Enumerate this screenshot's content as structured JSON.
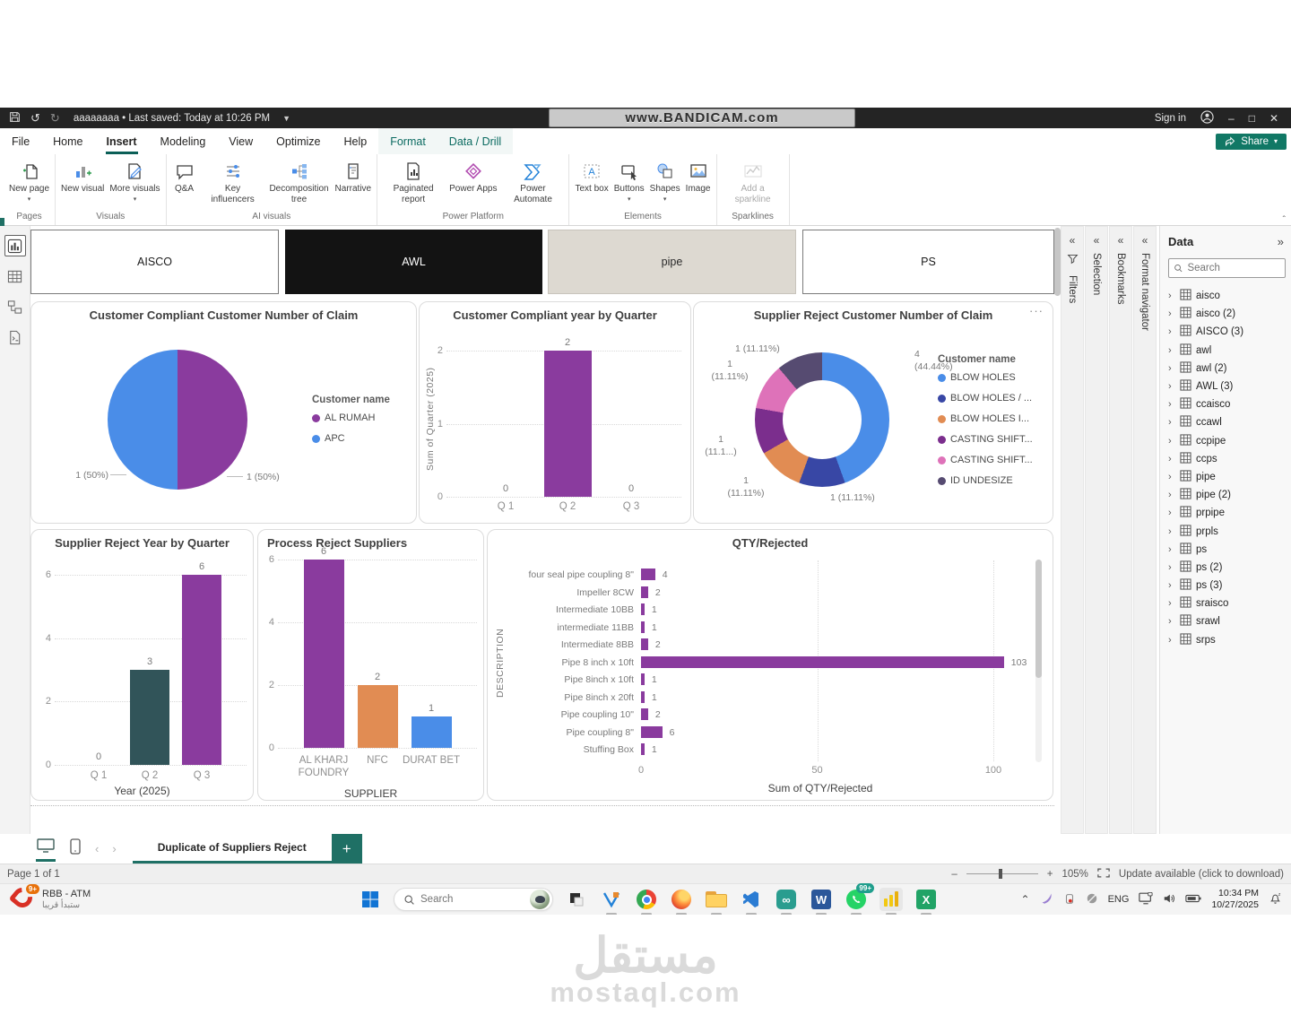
{
  "titlebar": {
    "watermark": "www.BANDICAM.com",
    "doc_title": "aaaaaaaa • Last saved: Today at 10:26 PM",
    "sign_in": "Sign in"
  },
  "menubar": {
    "items": [
      {
        "label": "File"
      },
      {
        "label": "Home"
      },
      {
        "label": "Insert",
        "active": true
      },
      {
        "label": "Modeling"
      },
      {
        "label": "View"
      },
      {
        "label": "Optimize"
      },
      {
        "label": "Help"
      },
      {
        "label": "Format",
        "contextual": true
      },
      {
        "label": "Data / Drill",
        "contextual": true
      }
    ],
    "share_label": "Share"
  },
  "ribbon": {
    "groups": [
      {
        "label": "Pages",
        "items": [
          {
            "label": "New page",
            "icon": "new-page",
            "dropdown": true
          }
        ]
      },
      {
        "label": "Visuals",
        "items": [
          {
            "label": "New visual",
            "icon": "new-visual"
          },
          {
            "label": "More visuals",
            "icon": "more-visuals",
            "dropdown": true
          }
        ]
      },
      {
        "label": "AI visuals",
        "items": [
          {
            "label": "Q&A",
            "icon": "qa"
          },
          {
            "label": "Key influencers",
            "icon": "key-influencers"
          },
          {
            "label": "Decomposition tree",
            "icon": "decomposition-tree"
          },
          {
            "label": "Narrative",
            "icon": "narrative"
          }
        ]
      },
      {
        "label": "Power Platform",
        "items": [
          {
            "label": "Paginated report",
            "icon": "paginated-report"
          },
          {
            "label": "Power Apps",
            "icon": "power-apps"
          },
          {
            "label": "Power Automate",
            "icon": "power-automate"
          }
        ]
      },
      {
        "label": "Elements",
        "items": [
          {
            "label": "Text box",
            "icon": "text-box"
          },
          {
            "label": "Buttons",
            "icon": "buttons",
            "dropdown": true
          },
          {
            "label": "Shapes",
            "icon": "shapes",
            "dropdown": true
          },
          {
            "label": "Image",
            "icon": "image"
          }
        ]
      },
      {
        "label": "Sparklines",
        "items": [
          {
            "label": "Add a sparkline",
            "icon": "sparkline",
            "disabled": true
          }
        ]
      }
    ]
  },
  "slicers": [
    {
      "label": "AISCO",
      "style": "light"
    },
    {
      "label": "AWL",
      "style": "dark"
    },
    {
      "label": "pipe",
      "style": "beige"
    },
    {
      "label": "PS",
      "style": "light"
    }
  ],
  "side_tabs": [
    {
      "label": "Filters",
      "icon": "funnel"
    },
    {
      "label": "Selection"
    },
    {
      "label": "Bookmarks"
    },
    {
      "label": "Format navigator"
    }
  ],
  "data_panel": {
    "title": "Data",
    "search_placeholder": "Search",
    "tables": [
      "aisco",
      "aisco (2)",
      "AISCO (3)",
      "awl",
      "awl (2)",
      "AWL (3)",
      "ccaisco",
      "ccawl",
      "ccpipe",
      "ccps",
      "pipe",
      "pipe (2)",
      "prpipe",
      "prpls",
      "ps",
      "ps (2)",
      "ps (3)",
      "sraisco",
      "srawl",
      "srps"
    ]
  },
  "pages_bar": {
    "tab_label": "Duplicate of Suppliers Reject"
  },
  "status_bar": {
    "page_label": "Page 1 of 1",
    "zoom_pct": "105%",
    "update_text": "Update available (click to download)"
  },
  "taskbar": {
    "pinned_label": "RBB - ATM",
    "pinned_sublabel": "ستبدأ قريبا",
    "pinned_badge": "9+",
    "search_placeholder": "Search",
    "whatsapp_badge": "99+",
    "tray": {
      "lang": "ENG",
      "time": "10:34 PM",
      "date": "10/27/2025"
    }
  },
  "watermark_footer": {
    "arabic": "مستقل",
    "site": "mostaql.com"
  },
  "chart_data": [
    {
      "type": "pie",
      "title": "Customer Compliant Customer Number of Claim",
      "legend_title": "Customer name",
      "legend_position": "right",
      "series": [
        {
          "name": "AL RUMAH",
          "value": 1,
          "label": "1 (50%)",
          "color": "#8A3B9E"
        },
        {
          "name": "APC",
          "value": 1,
          "label": "1 (50%)",
          "color": "#4A8DE8"
        }
      ]
    },
    {
      "type": "bar",
      "title": "Customer Compliant year by Quarter",
      "ylabel": "Sum of Quarter (2025)",
      "categories": [
        "Q 1",
        "Q 2",
        "Q 3"
      ],
      "values": [
        0,
        2,
        0
      ],
      "yticks": [
        0,
        1,
        2
      ],
      "ylim": [
        0,
        2
      ],
      "colors": [
        "#8A3B9E",
        "#8A3B9E",
        "#8A3B9E"
      ],
      "grid": true
    },
    {
      "type": "donut",
      "title": "Supplier Reject Customer Number of Claim",
      "legend_title": "Customer name",
      "legend_position": "right",
      "series": [
        {
          "name": "BLOW HOLES",
          "value": 4,
          "label": "4 (44.44%)",
          "color": "#4A8DE8"
        },
        {
          "name": "BLOW HOLES / ...",
          "value": 1,
          "label": "1 (11.11%)",
          "color": "#3847A5"
        },
        {
          "name": "BLOW HOLES I...",
          "value": 1,
          "label": "1 (11.11%)",
          "color": "#E18C53"
        },
        {
          "name": "CASTING SHIFT...",
          "value": 1,
          "label": "1 (11.1...)",
          "color": "#7B2E8D"
        },
        {
          "name": "CASTING SHIFT...",
          "value": 1,
          "label": "1 (11.11%)",
          "color": "#DE72B9"
        },
        {
          "name": "ID UNDESIZE",
          "value": 1,
          "label": "1 (11.11%)",
          "color": "#564B71"
        }
      ]
    },
    {
      "type": "bar",
      "title": "Supplier Reject Year by Quarter",
      "xlabel": "Year (2025)",
      "categories": [
        "Q 1",
        "Q 2",
        "Q 3"
      ],
      "values": [
        0,
        3,
        6
      ],
      "yticks": [
        0,
        2,
        4,
        6
      ],
      "ylim": [
        0,
        6
      ],
      "colors": [
        "#8A3B9E",
        "#315459",
        "#8A3B9E"
      ],
      "grid": true
    },
    {
      "type": "bar",
      "title": "Process Reject Suppliers",
      "xlabel": "SUPPLIER",
      "categories": [
        "AL KHARJ FOUNDRY",
        "NFC",
        "DURAT BET"
      ],
      "values": [
        6,
        2,
        1
      ],
      "yticks": [
        0,
        2,
        4,
        6
      ],
      "ylim": [
        0,
        6
      ],
      "colors": [
        "#8A3B9E",
        "#E18C53",
        "#4A8DE8"
      ],
      "grid": true
    },
    {
      "type": "hbar",
      "title": "QTY/Rejected",
      "xlabel": "Sum of QTY/Rejected",
      "ylabel": "DESCRIPTION",
      "categories": [
        "four seal pipe coupling 8\"",
        "Impeller 8CW",
        "Intermediate 10BB",
        "intermediate 11BB",
        "Intermediate 8BB",
        "Pipe 8 inch x 10ft",
        "Pipe 8inch x 10ft",
        "Pipe 8inch x 20ft",
        "Pipe coupling 10\"",
        "Pipe coupling 8\"",
        "Stuffing Box"
      ],
      "values": [
        4,
        2,
        1,
        1,
        2,
        103,
        1,
        1,
        2,
        6,
        1
      ],
      "xticks": [
        0,
        50,
        100
      ],
      "xlim": [
        0,
        110
      ],
      "bar_color": "#8A3B9E",
      "grid": true
    }
  ]
}
